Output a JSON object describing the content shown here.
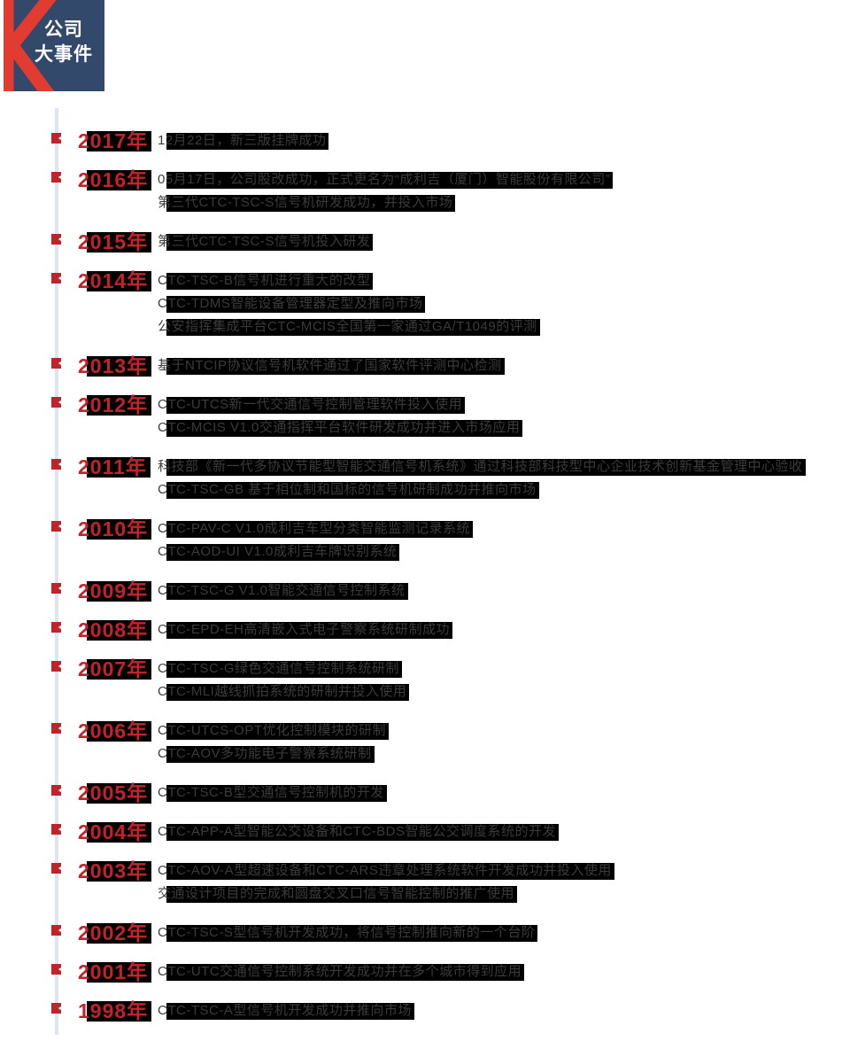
{
  "header": {
    "badge_bg": "#33496c",
    "k_color": "#e23b30",
    "text_color": "#ffffff",
    "title_line1": "公司",
    "title_line2": "大事件"
  },
  "timeline": {
    "line_color": "#dce4f6",
    "marker_color": "#c1232b",
    "year_color": "#c1232b",
    "highlight_color": "#000000",
    "text_color": "#3b3b3b",
    "entries": [
      {
        "year": "2017年",
        "lines": [
          "12月22日，新三版挂牌成功"
        ]
      },
      {
        "year": "2016年",
        "lines": [
          "05月17日，公司股改成功，正式更名为“成利吉（厦门）智能股份有限公司”",
          "第三代CTC-TSC-S信号机研发成功，并投入市场"
        ]
      },
      {
        "year": "2015年",
        "lines": [
          "第三代CTC-TSC-S信号机投入研发"
        ]
      },
      {
        "year": "2014年",
        "lines": [
          "CTC-TSC-B信号机进行重大的改型",
          "CTC-TDMS智能设备管理器定型及推向市场",
          "公安指挥集成平台CTC-MCIS全国第一家通过GA/T1049的评测"
        ]
      },
      {
        "year": "2013年",
        "lines": [
          "基于NTCIP协议信号机软件通过了国家软件评测中心检测"
        ]
      },
      {
        "year": "2012年",
        "lines": [
          "CTC-UTCS新一代交通信号控制管理软件投入使用",
          "CTC-MCIS V1.0交通指挥平台软件研发成功并进入市场应用"
        ]
      },
      {
        "year": "2011年",
        "lines": [
          "科技部《新一代多协议节能型智能交通信号机系统》通过科技部科技型中心企业技术创新基金管理中心验收",
          "CTC-TSC-GB 基于相位制和国标的信号机研制成功并推向市场"
        ]
      },
      {
        "year": "2010年",
        "lines": [
          "CTC-PAV-C V1.0成利吉车型分类智能监测记录系统",
          "CTC-AOD-UI V1.0成利吉车牌识别系统"
        ]
      },
      {
        "year": "2009年",
        "lines": [
          "CTC-TSC-G V1.0智能交通信号控制系统"
        ]
      },
      {
        "year": "2008年",
        "lines": [
          "CTC-EPD-EH高清嵌入式电子警察系统研制成功"
        ]
      },
      {
        "year": "2007年",
        "lines": [
          "CTC-TSC-G绿色交通信号控制系统研制",
          "CTC-MLI越线抓拍系统的研制并投入使用"
        ]
      },
      {
        "year": "2006年",
        "lines": [
          "CTC-UTCS-OPT优化控制模块的研制",
          "CTC-AOV多功能电子警察系统研制"
        ]
      },
      {
        "year": "2005年",
        "lines": [
          "CTC-TSC-B型交通信号控制机的开发"
        ]
      },
      {
        "year": "2004年",
        "lines": [
          "CTC-APP-A型智能公交设备和CTC-BDS智能公交调度系统的开发"
        ]
      },
      {
        "year": "2003年",
        "lines": [
          "CTC-AOV-A型超速设备和CTC-ARS违章处理系统软件开发成功并投入使用",
          "交通设计项目的完成和圆盘交叉口信号智能控制的推广使用"
        ]
      },
      {
        "year": "2002年",
        "lines": [
          "CTC-TSC-S型信号机开发成功，将信号控制推向新的一个台阶"
        ]
      },
      {
        "year": "2001年",
        "lines": [
          "CTC-UTC交通信号控制系统开发成功并在多个城市得到应用"
        ]
      },
      {
        "year": "1998年",
        "lines": [
          "CTC-TSC-A型信号机开发成功并推向市场"
        ]
      }
    ]
  }
}
